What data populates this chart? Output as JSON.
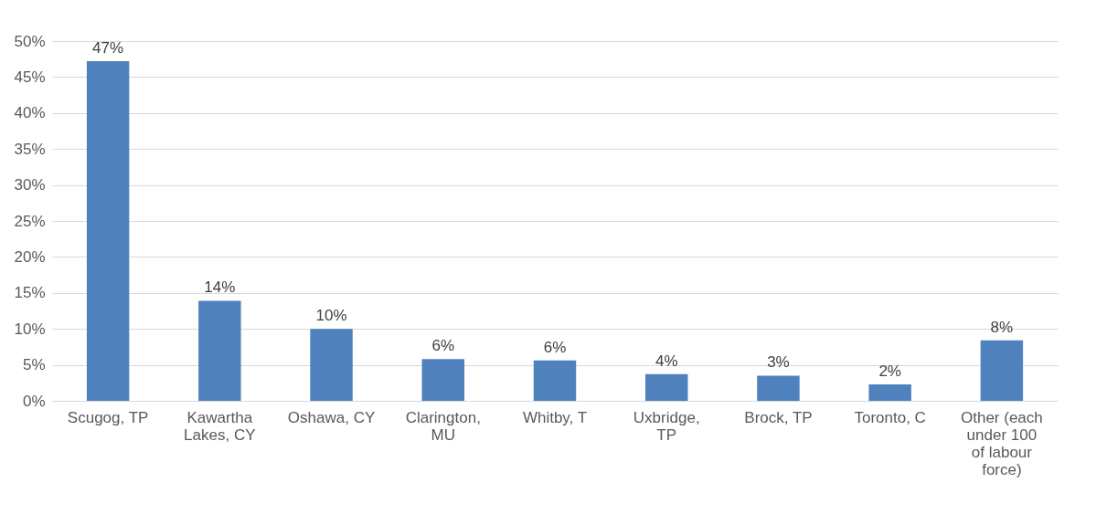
{
  "chart_data": {
    "type": "bar",
    "categories": [
      "Scugog, TP",
      "Kawartha Lakes, CY",
      "Oshawa, CY",
      "Clarington, MU",
      "Whitby, T",
      "Uxbridge, TP",
      "Brock, TP",
      "Toronto, C",
      "Other (each under 100 of labour force)"
    ],
    "values": [
      47.2,
      13.9,
      10.0,
      5.8,
      5.6,
      3.7,
      3.5,
      2.3,
      8.4
    ],
    "value_labels": [
      "47%",
      "14%",
      "10%",
      "6%",
      "6%",
      "4%",
      "3%",
      "2%",
      "8%"
    ],
    "color": "#4f81bd",
    "ylim": [
      0,
      50
    ],
    "yticks": [
      {
        "value": 0,
        "label": "0%"
      },
      {
        "value": 5,
        "label": "5%"
      },
      {
        "value": 10,
        "label": "10%"
      },
      {
        "value": 15,
        "label": "15%"
      },
      {
        "value": 20,
        "label": "20%"
      },
      {
        "value": 25,
        "label": "25%"
      },
      {
        "value": 30,
        "label": "30%"
      },
      {
        "value": 35,
        "label": "35%"
      },
      {
        "value": 40,
        "label": "40%"
      },
      {
        "value": 45,
        "label": "45%"
      },
      {
        "value": 50,
        "label": "50%"
      }
    ],
    "grid": "y"
  }
}
